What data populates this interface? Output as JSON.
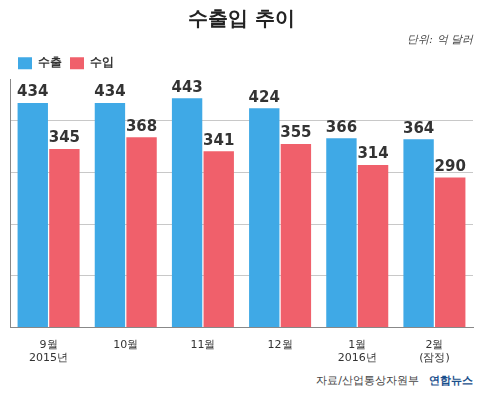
{
  "chart_data": {
    "type": "bar",
    "title": "수출입 추이",
    "subtitle": "단위: 억 달러",
    "categories": [
      "9월\n2015년",
      "10월",
      "11월",
      "12월",
      "1월\n2016년",
      "2월\n(잠정)"
    ],
    "series": [
      {
        "name": "수출",
        "color": "#3fa9e6",
        "values": [
          434,
          434,
          443,
          424,
          366,
          364
        ]
      },
      {
        "name": "수입",
        "color": "#f0606b",
        "values": [
          345,
          368,
          341,
          355,
          314,
          290
        ]
      }
    ],
    "ylim": [
      0,
      480
    ],
    "yticks": [
      0,
      100,
      200,
      300,
      400
    ],
    "grid": true,
    "tick_labels": "x",
    "data_labels": true,
    "legend": "top-left",
    "source": "자료/산업통상자원부",
    "credit": "연합뉴스"
  }
}
